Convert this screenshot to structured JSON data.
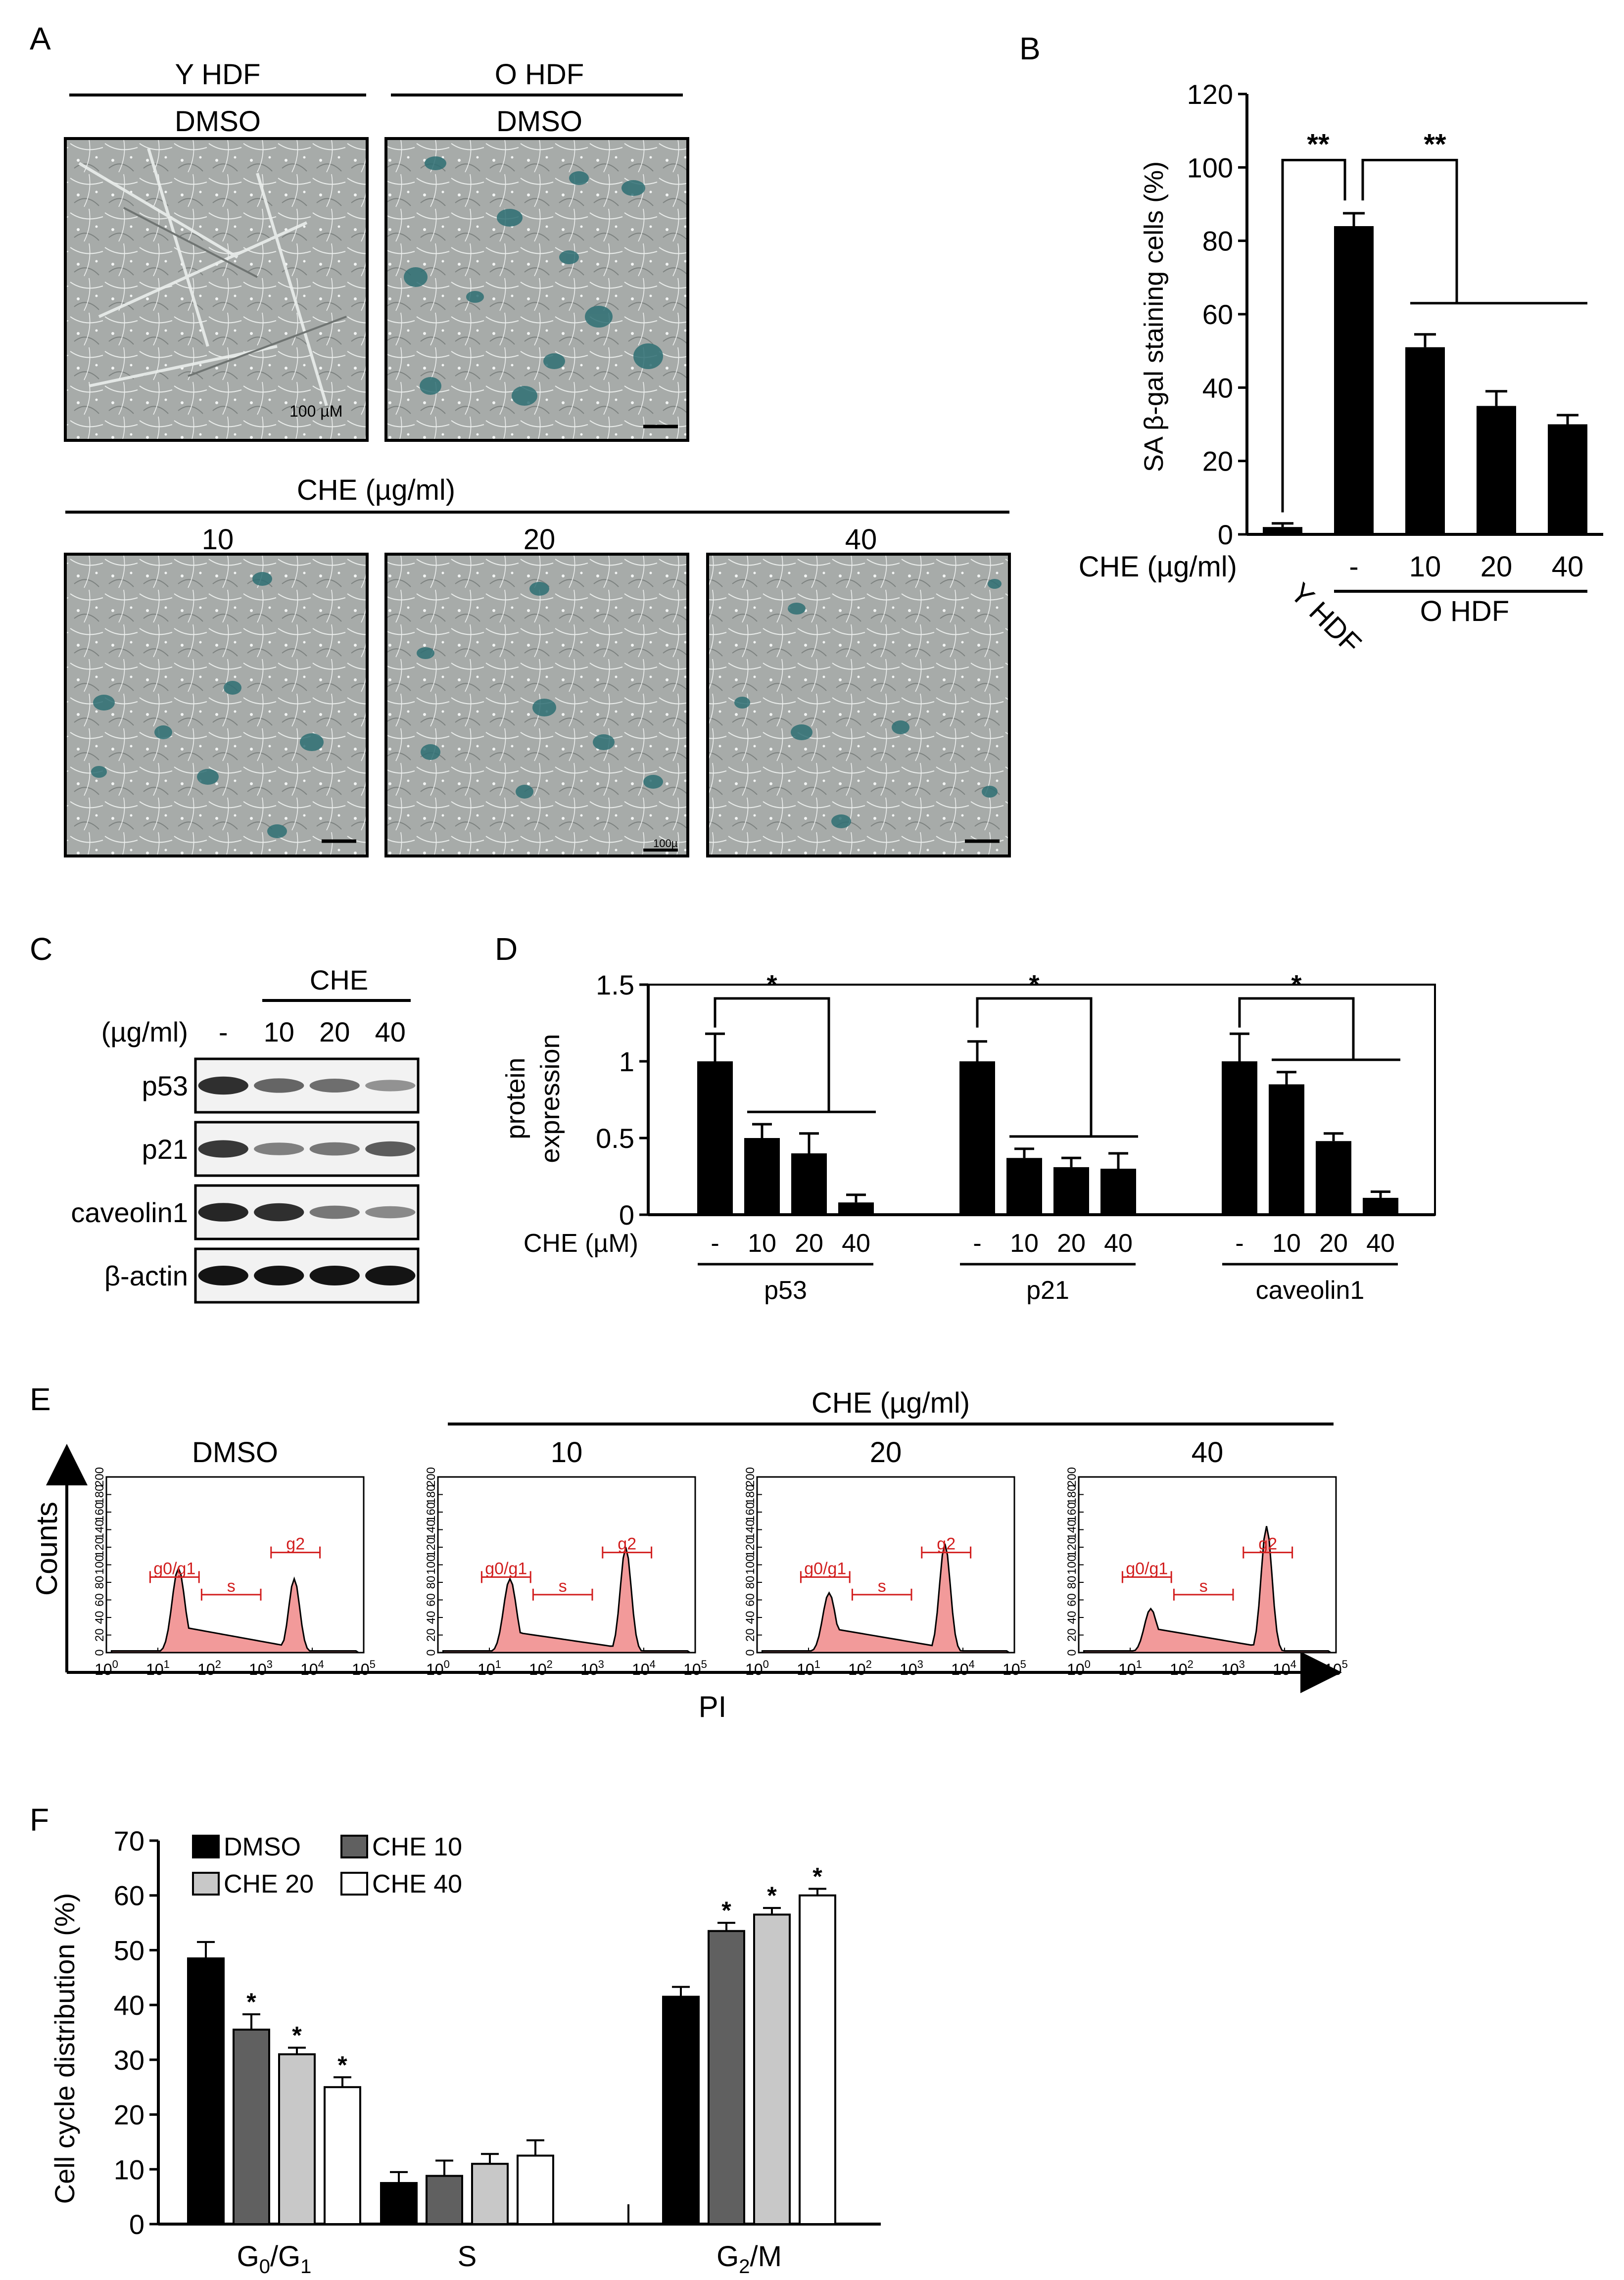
{
  "panel_letters": {
    "A": "A",
    "B": "B",
    "C": "C",
    "D": "D",
    "E": "E",
    "F": "F"
  },
  "colors": {
    "bar_black": "#000000",
    "bar_dark": "#606060",
    "bar_light": "#c8c8c8",
    "bar_white": "#ffffff",
    "histogram_fill": "#f29a9a",
    "gate_red": "#d21f1f",
    "micro_bg": "#a7aba9",
    "stain": "#2e6f73"
  },
  "panel_a": {
    "y_hdf": "Y HDF",
    "o_hdf": "O HDF",
    "dmso_1": "DMSO",
    "dmso_2": "DMSO",
    "scale_label": "100 µM",
    "scale_label_small": "100µ",
    "che_title": "CHE (µg/ml)",
    "conc_10": "10",
    "conc_20": "20",
    "conc_40": "40"
  },
  "panel_c": {
    "che": "CHE",
    "unit": "(µg/ml)",
    "lanes": [
      "-",
      "10",
      "20",
      "40"
    ],
    "bands": [
      {
        "label": "p53",
        "intensity": [
          0.85,
          0.55,
          0.5,
          0.3
        ]
      },
      {
        "label": "p21",
        "intensity": [
          0.8,
          0.4,
          0.45,
          0.6
        ]
      },
      {
        "label": "caveolin1",
        "intensity": [
          0.9,
          0.85,
          0.45,
          0.35
        ]
      },
      {
        "label": "β-actin",
        "intensity": [
          1.0,
          1.0,
          1.0,
          1.0
        ]
      }
    ]
  },
  "panel_e": {
    "che_title": "CHE (µg/ml)",
    "titles": [
      "DMSO",
      "10",
      "20",
      "40"
    ],
    "y_label": "Counts",
    "x_label": "PI",
    "y_ticks": [
      "0",
      "20",
      "40",
      "60",
      "80",
      "100",
      "120",
      "140",
      "160",
      "180",
      "200"
    ],
    "x_tick_base": "10",
    "x_tick_exps": [
      "0",
      "1",
      "2",
      "3",
      "4",
      "5"
    ],
    "gates": {
      "g0g1": "g0/g1",
      "s": "s",
      "g2": "g2"
    },
    "histograms": [
      {
        "g1_height": 0.48,
        "s_level": 0.15,
        "g2_height": 0.42
      },
      {
        "g1_height": 0.42,
        "s_level": 0.12,
        "g2_height": 0.6
      },
      {
        "g1_height": 0.34,
        "s_level": 0.14,
        "g2_height": 0.62
      },
      {
        "g1_height": 0.25,
        "s_level": 0.14,
        "g2_height": 0.72
      }
    ]
  },
  "chart_data": [
    {
      "id": "B",
      "type": "bar",
      "ylabel": "SA β-gal staining cells (%)",
      "ylim": [
        0,
        120
      ],
      "yticks": [
        "0",
        "20",
        "40",
        "60",
        "80",
        "100",
        "120"
      ],
      "categories": [
        "Y HDF",
        "-",
        "10",
        "20",
        "40"
      ],
      "values": [
        2,
        84,
        51,
        35,
        30
      ],
      "errors": [
        1,
        3.5,
        3.5,
        4,
        2.5
      ],
      "x_prefix": "CHE (µg/ml)",
      "group_label": "O HDF",
      "significance": [
        "**",
        "**"
      ]
    },
    {
      "id": "D",
      "type": "bar",
      "ylabel_line1": "protein",
      "ylabel_line2": "expression",
      "ylim": [
        0,
        1.5
      ],
      "yticks": [
        "0",
        "0.5",
        "1",
        "1.5"
      ],
      "x_prefix": "CHE (µM)",
      "groups": [
        {
          "name": "p53",
          "categories": [
            "-",
            "10",
            "20",
            "40"
          ],
          "values": [
            1.0,
            0.5,
            0.4,
            0.08
          ],
          "errors": [
            0.18,
            0.09,
            0.13,
            0.05
          ]
        },
        {
          "name": "p21",
          "categories": [
            "-",
            "10",
            "20",
            "40"
          ],
          "values": [
            1.0,
            0.37,
            0.31,
            0.3
          ],
          "errors": [
            0.13,
            0.06,
            0.06,
            0.1
          ]
        },
        {
          "name": "caveolin1",
          "categories": [
            "-",
            "10",
            "20",
            "40"
          ],
          "values": [
            1.0,
            0.85,
            0.48,
            0.11
          ],
          "errors": [
            0.18,
            0.08,
            0.05,
            0.04
          ]
        }
      ],
      "significance": [
        "*",
        "*",
        "*"
      ]
    },
    {
      "id": "F",
      "type": "bar",
      "ylabel": "Cell cycle distribution (%)",
      "ylim": [
        0,
        70
      ],
      "yticks": [
        "0",
        "10",
        "20",
        "30",
        "40",
        "50",
        "60",
        "70"
      ],
      "categories": [
        "G0/G1",
        "S",
        "G2/M"
      ],
      "series": [
        {
          "name": "DMSO",
          "values": [
            48.5,
            7.5,
            41.5
          ],
          "errors": [
            3,
            2,
            1.8
          ]
        },
        {
          "name": "CHE 10",
          "values": [
            35.5,
            8.8,
            53.5
          ],
          "errors": [
            2.8,
            2.8,
            1.5
          ]
        },
        {
          "name": "CHE 20",
          "values": [
            31,
            11,
            56.5
          ],
          "errors": [
            1.2,
            1.8,
            1.2
          ]
        },
        {
          "name": "CHE 40",
          "values": [
            25,
            12.5,
            60
          ],
          "errors": [
            1.8,
            2.8,
            1.2
          ]
        }
      ],
      "stars": [
        [
          "",
          "*",
          "*",
          "*"
        ],
        [
          "",
          "",
          "",
          ""
        ],
        [
          "",
          "*",
          "*",
          "*"
        ]
      ],
      "legend_position": "top-left"
    }
  ]
}
